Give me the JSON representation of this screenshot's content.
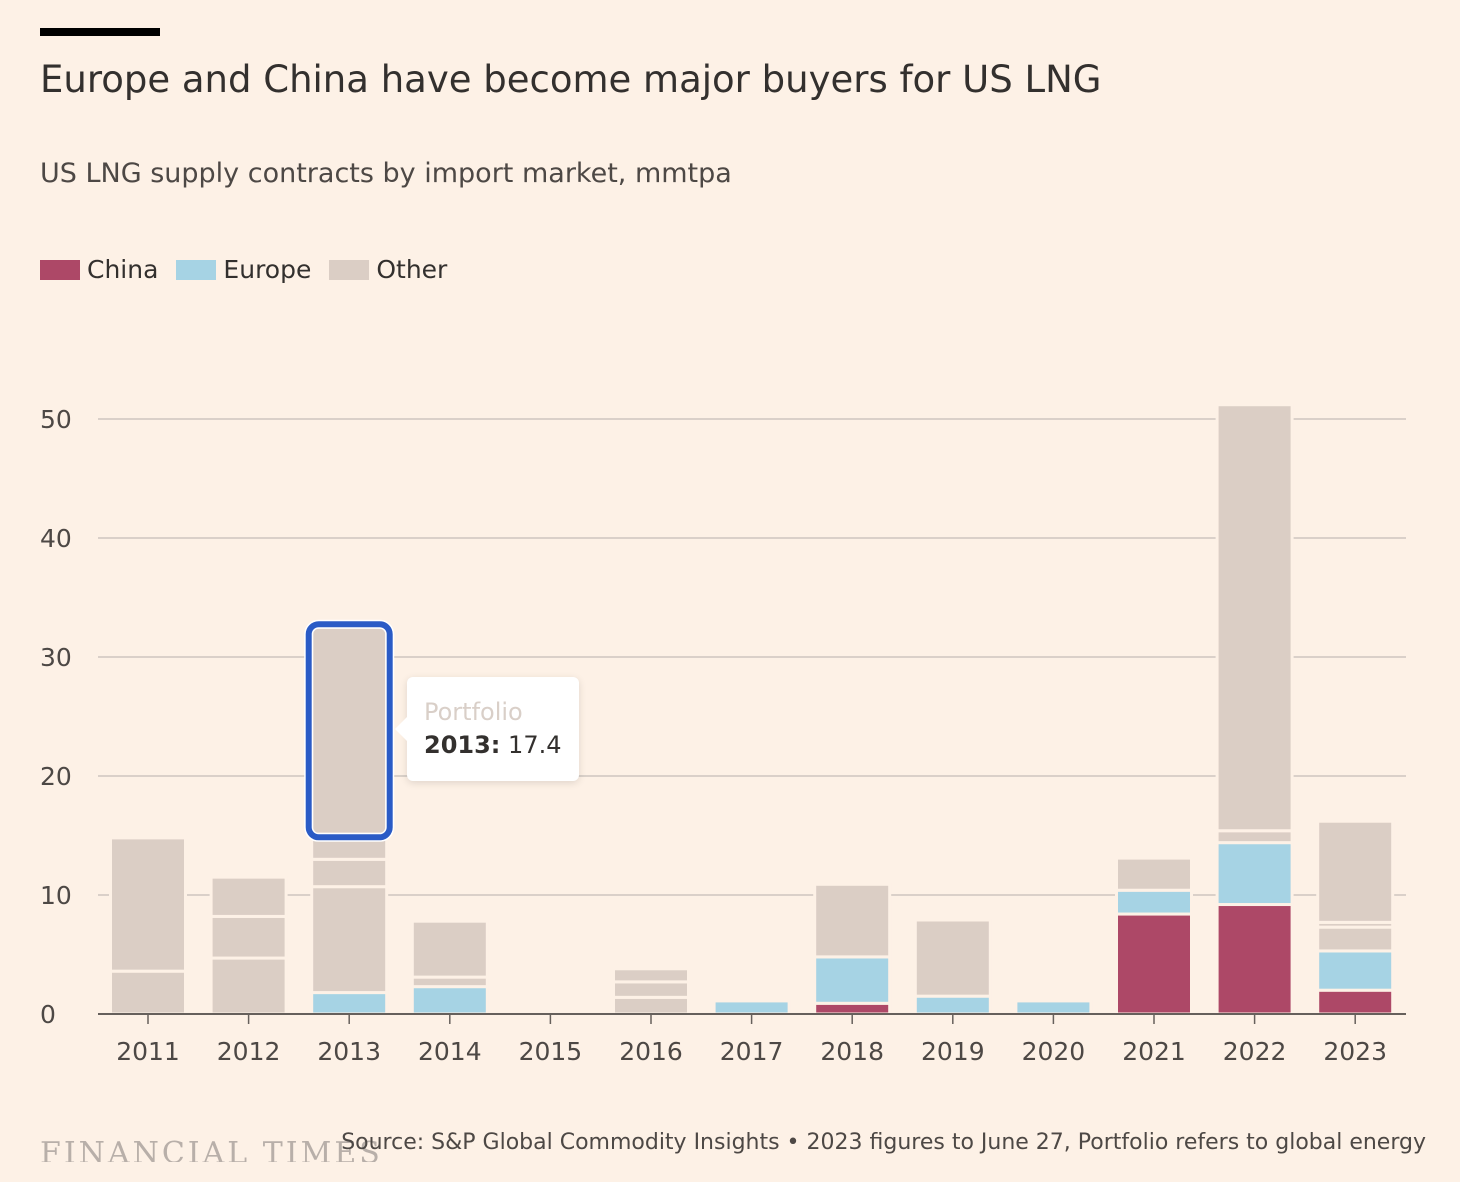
{
  "header": {
    "title": "Europe and China have become major buyers for US LNG",
    "subtitle": "US LNG supply contracts by import market, mmtpa"
  },
  "legend": [
    {
      "name": "China",
      "color": "#ad4867"
    },
    {
      "name": "Europe",
      "color": "#a6d3e4"
    },
    {
      "name": "Other",
      "color": "#dbcec5"
    }
  ],
  "tooltip": {
    "label": "Portfolio",
    "year": "2013:",
    "value": "17.4"
  },
  "footer": {
    "logo": "FINANCIAL TIMES",
    "source": "Source: S&P Global Commodity Insights • 2023 figures to June 27, Portfolio refers to global energy"
  },
  "colors": {
    "china": "#ad4867",
    "europe": "#a6d3e4",
    "other": "#dbcec5",
    "highlight": "#2a5bc6",
    "grid": "#cec6bf",
    "background": "#fdf1e6"
  },
  "chart_data": {
    "type": "bar",
    "stacked": true,
    "categories": [
      "2011",
      "2012",
      "2013",
      "2014",
      "2015",
      "2016",
      "2017",
      "2018",
      "2019",
      "2020",
      "2021",
      "2022",
      "2023"
    ],
    "yticks": [
      0,
      10,
      20,
      30,
      40,
      50
    ],
    "ylim": [
      0,
      52
    ],
    "grid": true,
    "legend_position": "top-left",
    "highlighted": {
      "category": "2013",
      "series": "Other",
      "segment_value": 17.4
    },
    "bars": [
      {
        "year": "2011",
        "segments": [
          {
            "series": "Other",
            "value": 3.6
          },
          {
            "series": "Other",
            "value": 11.2
          }
        ]
      },
      {
        "year": "2012",
        "segments": [
          {
            "series": "Other",
            "value": 4.7
          },
          {
            "series": "Other",
            "value": 3.5
          },
          {
            "series": "Other",
            "value": 3.3
          }
        ]
      },
      {
        "year": "2013",
        "segments": [
          {
            "series": "Europe",
            "value": 1.8
          },
          {
            "series": "Other",
            "value": 8.9
          },
          {
            "series": "Other",
            "value": 2.3
          },
          {
            "series": "Other",
            "value": 2.1
          },
          {
            "series": "Other",
            "value": 17.4
          }
        ]
      },
      {
        "year": "2014",
        "segments": [
          {
            "series": "Europe",
            "value": 2.3
          },
          {
            "series": "Other",
            "value": 0.8
          },
          {
            "series": "Other",
            "value": 4.7
          }
        ]
      },
      {
        "year": "2015",
        "segments": []
      },
      {
        "year": "2016",
        "segments": [
          {
            "series": "Other",
            "value": 1.4
          },
          {
            "series": "Other",
            "value": 1.3
          },
          {
            "series": "Other",
            "value": 1.1
          }
        ]
      },
      {
        "year": "2017",
        "segments": [
          {
            "series": "Europe",
            "value": 1.1
          }
        ]
      },
      {
        "year": "2018",
        "segments": [
          {
            "series": "China",
            "value": 0.9
          },
          {
            "series": "Europe",
            "value": 3.9
          },
          {
            "series": "Other",
            "value": 6.1
          }
        ]
      },
      {
        "year": "2019",
        "segments": [
          {
            "series": "Europe",
            "value": 1.5
          },
          {
            "series": "Other",
            "value": 6.4
          }
        ]
      },
      {
        "year": "2020",
        "segments": [
          {
            "series": "Europe",
            "value": 1.1
          }
        ]
      },
      {
        "year": "2021",
        "segments": [
          {
            "series": "China",
            "value": 8.4
          },
          {
            "series": "Europe",
            "value": 2.0
          },
          {
            "series": "Other",
            "value": 2.7
          }
        ]
      },
      {
        "year": "2022",
        "segments": [
          {
            "series": "China",
            "value": 9.2
          },
          {
            "series": "Europe",
            "value": 5.2
          },
          {
            "series": "Other",
            "value": 1.0
          },
          {
            "series": "Other",
            "value": 35.8
          }
        ]
      },
      {
        "year": "2023",
        "segments": [
          {
            "series": "China",
            "value": 2.0
          },
          {
            "series": "Europe",
            "value": 3.3
          },
          {
            "series": "Other",
            "value": 2.0
          },
          {
            "series": "Other",
            "value": 0.4
          },
          {
            "series": "Other",
            "value": 8.5
          }
        ]
      }
    ]
  }
}
